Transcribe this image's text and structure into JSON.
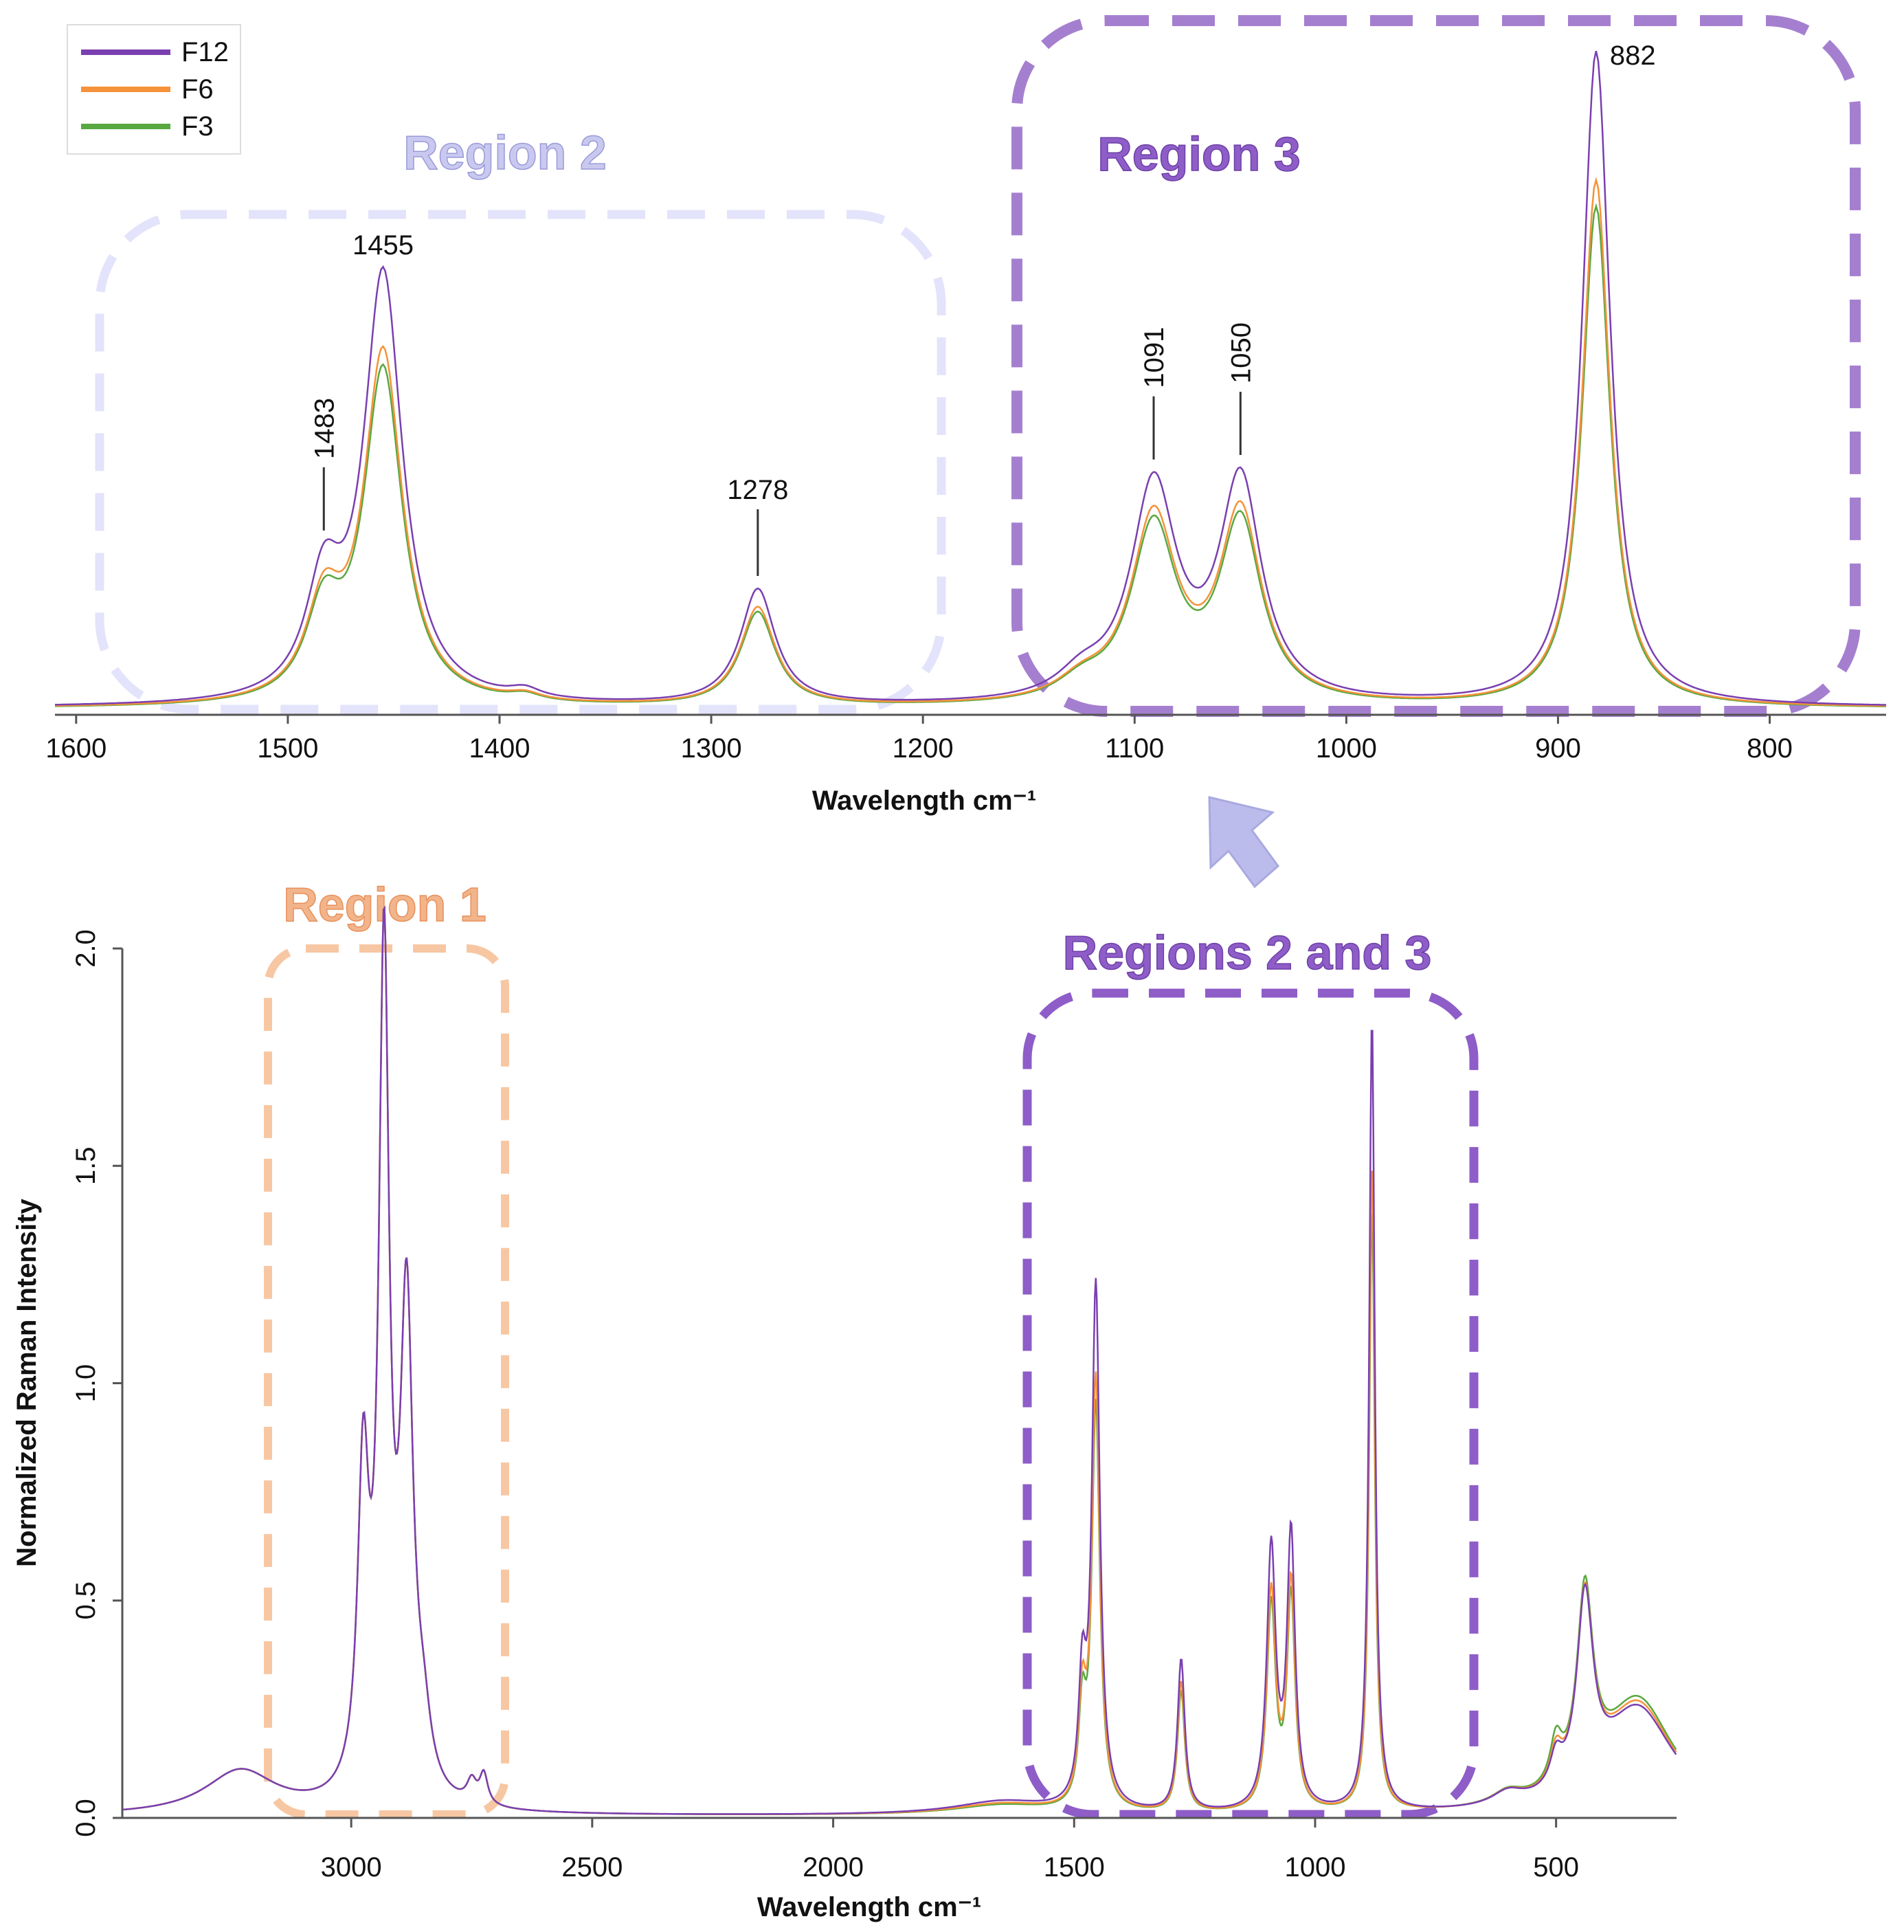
{
  "chart_data": [
    {
      "id": "zoom",
      "type": "line",
      "title": "",
      "xlabel": "Wavelength cm⁻¹",
      "ylabel": "",
      "xlim": [
        1610,
        745
      ],
      "ylim": [
        0,
        1.55
      ],
      "xticks": [
        "1600",
        "1500",
        "1400",
        "1300",
        "1200",
        "1100",
        "1000",
        "900",
        "800"
      ],
      "peak_labels": [
        {
          "position": 1483,
          "text": "1483",
          "orientation": "vertical"
        },
        {
          "position": 1455,
          "text": "1455",
          "orientation": "horizontal"
        },
        {
          "position": 1278,
          "text": "1278",
          "orientation": "horizontal"
        },
        {
          "position": 1091,
          "text": "1091",
          "orientation": "vertical"
        },
        {
          "position": 1050,
          "text": "1050",
          "orientation": "vertical"
        },
        {
          "position": 882,
          "text": "882",
          "orientation": "horizontal"
        }
      ],
      "regions": [
        {
          "name": "Region 2",
          "from": 1600,
          "to": 1200,
          "color": "#e3e3fb",
          "label_color": "#c9c9f0"
        },
        {
          "name": "Region 3",
          "from": 1115,
          "to": 745,
          "color": "#a57fcf",
          "label_color": "#8e5dc8"
        }
      ],
      "series": [
        {
          "name": "F12",
          "color": "#7a3fb0",
          "values": {
            "base": 0.008,
            "peaks": [
              [
                1483,
                0.25,
                10
              ],
              [
                1455,
                1.0,
                11
              ],
              [
                1388,
                0.02,
                9
              ],
              [
                1278,
                0.27,
                10
              ],
              [
                1125,
                0.05,
                14
              ],
              [
                1091,
                0.5,
                13
              ],
              [
                1050,
                0.51,
                12
              ],
              [
                882,
                1.53,
                8
              ]
            ]
          }
        },
        {
          "name": "F6",
          "color": "#f5923a",
          "values": {
            "base": 0.007,
            "peaks": [
              [
                1483,
                0.21,
                10
              ],
              [
                1455,
                0.82,
                11
              ],
              [
                1388,
                0.015,
                9
              ],
              [
                1278,
                0.23,
                10
              ],
              [
                1125,
                0.04,
                14
              ],
              [
                1091,
                0.43,
                13
              ],
              [
                1050,
                0.44,
                12
              ],
              [
                882,
                1.23,
                8
              ]
            ]
          }
        },
        {
          "name": "F3",
          "color": "#5aa840",
          "values": {
            "base": 0.006,
            "peaks": [
              [
                1483,
                0.2,
                10
              ],
              [
                1455,
                0.78,
                11
              ],
              [
                1388,
                0.015,
                9
              ],
              [
                1278,
                0.22,
                10
              ],
              [
                1125,
                0.04,
                14
              ],
              [
                1091,
                0.41,
                13
              ],
              [
                1050,
                0.42,
                12
              ],
              [
                882,
                1.17,
                8
              ]
            ]
          }
        }
      ]
    },
    {
      "id": "full",
      "type": "line",
      "title": "",
      "xlabel": "Wavelength cm⁻¹",
      "ylabel": "Normalized Raman Intensity",
      "xlim": [
        3475,
        250
      ],
      "ylim": [
        0,
        2.0
      ],
      "xticks": [
        "3000",
        "2500",
        "2000",
        "1500",
        "1000",
        "500"
      ],
      "yticks": [
        "0.0",
        "0.5",
        "1.0",
        "1.5",
        "2.0"
      ],
      "regions": [
        {
          "name": "Region 1",
          "from": 3160,
          "to": 2670,
          "color": "#f7c7a3",
          "label_color": "#f2b48a"
        },
        {
          "name": "Regions 2 and 3",
          "from": 1585,
          "to": 700,
          "color": "#8e5dc8",
          "label_color": "#8e5dc8"
        }
      ],
      "series": [
        {
          "name": "F12",
          "color": "#7a3fb0",
          "values": {
            "base": 0.004,
            "peaks": [
              [
                3230,
                0.1,
                90
              ],
              [
                2975,
                0.72,
                14
              ],
              [
                2932,
                1.9,
                13
              ],
              [
                2885,
                1.1,
                16
              ],
              [
                2850,
                0.12,
                18
              ],
              [
                2750,
                0.05,
                12
              ],
              [
                2725,
                0.07,
                10
              ],
              [
                1650,
                0.03,
                120
              ],
              [
                1483,
                0.27,
                9
              ],
              [
                1455,
                1.2,
                10
              ],
              [
                1278,
                0.35,
                9
              ],
              [
                1091,
                0.6,
                11
              ],
              [
                1050,
                0.63,
                10
              ],
              [
                882,
                1.83,
                7
              ],
              [
                600,
                0.03,
                40
              ],
              [
                500,
                0.07,
                15
              ],
              [
                440,
                0.43,
                20
              ],
              [
                330,
                0.24,
                90
              ]
            ]
          }
        },
        {
          "name": "F6",
          "color": "#f5923a",
          "values": {
            "base": 0.004,
            "peaks": [
              [
                3230,
                0.1,
                90
              ],
              [
                2975,
                0.72,
                14
              ],
              [
                2932,
                1.9,
                13
              ],
              [
                2885,
                1.1,
                16
              ],
              [
                2850,
                0.12,
                18
              ],
              [
                2750,
                0.05,
                12
              ],
              [
                2725,
                0.07,
                10
              ],
              [
                1650,
                0.025,
                120
              ],
              [
                1483,
                0.23,
                9
              ],
              [
                1455,
                0.99,
                10
              ],
              [
                1278,
                0.3,
                9
              ],
              [
                1091,
                0.5,
                11
              ],
              [
                1050,
                0.52,
                10
              ],
              [
                882,
                1.5,
                7
              ],
              [
                600,
                0.03,
                40
              ],
              [
                500,
                0.08,
                15
              ],
              [
                440,
                0.43,
                20
              ],
              [
                330,
                0.25,
                90
              ]
            ]
          }
        },
        {
          "name": "F3",
          "color": "#5aa840",
          "values": {
            "base": 0.004,
            "peaks": [
              [
                3230,
                0.1,
                90
              ],
              [
                2975,
                0.72,
                14
              ],
              [
                2932,
                1.9,
                13
              ],
              [
                2885,
                1.1,
                16
              ],
              [
                2850,
                0.12,
                18
              ],
              [
                2750,
                0.05,
                12
              ],
              [
                2725,
                0.07,
                10
              ],
              [
                1650,
                0.022,
                120
              ],
              [
                1483,
                0.21,
                9
              ],
              [
                1455,
                0.93,
                10
              ],
              [
                1278,
                0.28,
                9
              ],
              [
                1091,
                0.47,
                11
              ],
              [
                1050,
                0.49,
                10
              ],
              [
                882,
                1.4,
                7
              ],
              [
                600,
                0.03,
                40
              ],
              [
                500,
                0.1,
                15
              ],
              [
                440,
                0.44,
                20
              ],
              [
                330,
                0.26,
                90
              ]
            ]
          }
        }
      ]
    }
  ],
  "legend": [
    {
      "name": "F12",
      "color": "#7a3fb0"
    },
    {
      "name": "F6",
      "color": "#f5923a"
    },
    {
      "name": "F3",
      "color": "#5aa840"
    }
  ]
}
